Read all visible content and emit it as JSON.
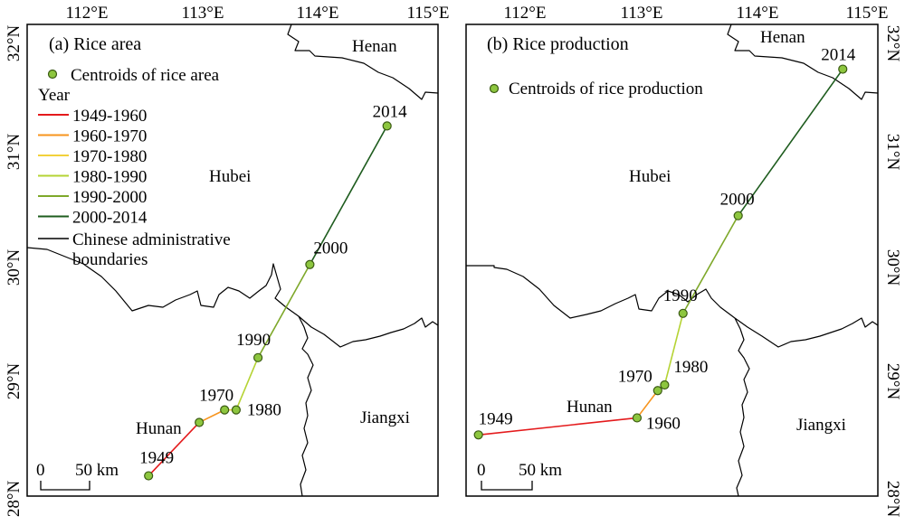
{
  "colors": {
    "p1949_1960": "#e41a1c",
    "p1960_1970": "#f7941d",
    "p1970_1980": "#f2d13b",
    "p1980_1990": "#b5d334",
    "p1990_2000": "#7ea82a",
    "p2000_2014": "#1e5c1e",
    "boundary": "#000000",
    "centroid_fill": "#8dc63f"
  },
  "axes": {
    "x_ticks": [
      "112°E",
      "113°E",
      "114°E",
      "115°E"
    ],
    "y_ticks": [
      "32°N",
      "31°N",
      "30°N",
      "29°N",
      "28°N"
    ]
  },
  "panel_a": {
    "title": "(a) Rice area",
    "legend": {
      "centroid_label": "Centroids of rice area",
      "year_heading": "Year",
      "periods": [
        {
          "label": "1949-1960",
          "color_key": "p1949_1960"
        },
        {
          "label": "1960-1970",
          "color_key": "p1960_1970"
        },
        {
          "label": "1970-1980",
          "color_key": "p1970_1980"
        },
        {
          "label": "1980-1990",
          "color_key": "p1980_1990"
        },
        {
          "label": "1990-2000",
          "color_key": "p1990_2000"
        },
        {
          "label": "2000-2014",
          "color_key": "p2000_2014"
        }
      ],
      "boundary_label_1": "Chinese administrative",
      "boundary_label_2": "boundaries"
    },
    "regions": {
      "henan": "Henan",
      "hubei": "Hubei",
      "hunan": "Hunan",
      "jiangxi": "Jiangxi"
    },
    "scale": {
      "zero": "0",
      "dist": "50 km"
    },
    "centroids": [
      {
        "year": "1949",
        "lon": 112.53,
        "lat": 28.15
      },
      {
        "year": "1960",
        "lon": 112.97,
        "lat": 28.62
      },
      {
        "year": "1970",
        "lon": 113.19,
        "lat": 28.73
      },
      {
        "year": "1980",
        "lon": 113.29,
        "lat": 28.73
      },
      {
        "year": "1990",
        "lon": 113.48,
        "lat": 29.19
      },
      {
        "year": "2000",
        "lon": 113.93,
        "lat": 30.01
      },
      {
        "year": "2014",
        "lon": 114.6,
        "lat": 31.23
      }
    ]
  },
  "panel_b": {
    "title": "(b) Rice production",
    "legend": {
      "centroid_label": "Centroids of rice production"
    },
    "regions": {
      "henan": "Henan",
      "hubei": "Hubei",
      "hunan": "Hunan",
      "jiangxi": "Jiangxi"
    },
    "scale": {
      "zero": "0",
      "dist": "50 km"
    },
    "centroids": [
      {
        "year": "1949",
        "lon": 111.58,
        "lat": 28.51
      },
      {
        "year": "1960",
        "lon": 112.96,
        "lat": 28.66
      },
      {
        "year": "1970",
        "lon": 113.14,
        "lat": 28.9
      },
      {
        "year": "1980",
        "lon": 113.2,
        "lat": 28.95
      },
      {
        "year": "1990",
        "lon": 113.36,
        "lat": 29.58
      },
      {
        "year": "2000",
        "lon": 113.84,
        "lat": 30.44
      },
      {
        "year": "2014",
        "lon": 114.75,
        "lat": 31.73
      }
    ]
  }
}
